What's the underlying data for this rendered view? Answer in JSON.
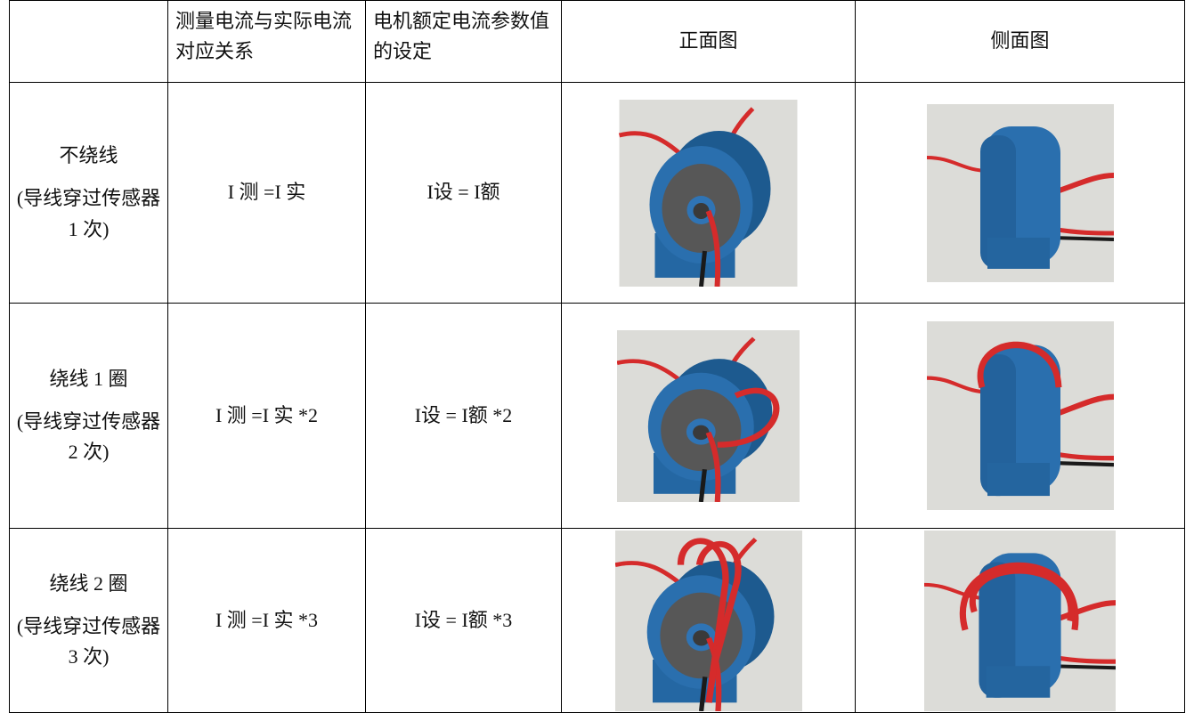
{
  "table": {
    "header": [
      "测量电流与实际电流对应关系",
      "电机额定电流参数值的设定",
      "正面图",
      "侧面图"
    ],
    "rows": [
      {
        "winding": "不绕线",
        "note": "(导线穿过传感器 1 次)",
        "measured": "I 测 =I 实",
        "setting": "I设 = I额"
      },
      {
        "winding": "绕线 1 圈",
        "note": "(导线穿过传感器 2 次)",
        "measured": "I 测 =I 实 *2",
        "setting": "I设 = I额 *2"
      },
      {
        "winding": "绕线 2 圈",
        "note": "(导线穿过传感器 3 次)",
        "measured": "I 测 =I 实 *3",
        "setting": "I设 = I额 *3"
      }
    ]
  }
}
